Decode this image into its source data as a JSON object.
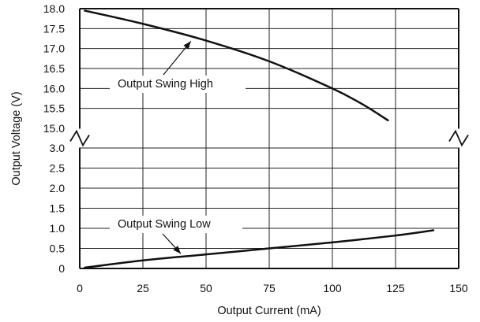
{
  "chart_data": {
    "type": "line",
    "title": "",
    "xlabel": "Output Current (mA)",
    "ylabel": "Output Voltage (V)",
    "xlim": [
      0,
      150
    ],
    "x_ticks": [
      0,
      25,
      50,
      75,
      100,
      125,
      150
    ],
    "x_tick_labels": [
      "0",
      "25",
      "50",
      "75",
      "100",
      "125",
      "150"
    ],
    "y_axis_break": {
      "lower_range": [
        0,
        3.0
      ],
      "upper_range": [
        15.0,
        18.0
      ]
    },
    "y_ticks_upper": [
      15.0,
      15.5,
      16.0,
      16.5,
      17.0,
      17.5,
      18.0
    ],
    "y_tick_labels_upper": [
      "15.0",
      "15.5",
      "16.0",
      "16.5",
      "17.0",
      "17.5",
      "18.0"
    ],
    "y_ticks_lower": [
      0,
      0.5,
      1.0,
      1.5,
      2.0,
      2.5,
      3.0
    ],
    "y_tick_labels_lower": [
      "0",
      "0.5",
      "1.0",
      "1.5",
      "2.0",
      "2.5",
      "3.0"
    ],
    "grid": true,
    "series": [
      {
        "name": "Output Swing High",
        "x": [
          2,
          25,
          50,
          75,
          100,
          112,
          122
        ],
        "values": [
          17.95,
          17.62,
          17.2,
          16.68,
          16.0,
          15.6,
          15.2
        ]
      },
      {
        "name": "Output Swing Low",
        "x": [
          2,
          25,
          50,
          75,
          100,
          125,
          140
        ],
        "values": [
          0.02,
          0.2,
          0.35,
          0.5,
          0.65,
          0.82,
          0.95
        ]
      }
    ],
    "annotations": [
      {
        "text": "Output Swing High",
        "series": 0,
        "points_to_x": 44
      },
      {
        "text": "Output Swing Low",
        "series": 1,
        "points_to_x": 40
      }
    ]
  }
}
